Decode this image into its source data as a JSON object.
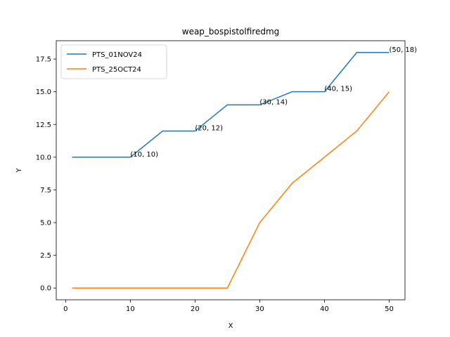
{
  "chart_data": {
    "type": "line",
    "title": "weap_bospistolfiredmg",
    "xlabel": "X",
    "ylabel": "Y",
    "xlim": [
      -1.45,
      52.45
    ],
    "ylim": [
      -0.9,
      18.9
    ],
    "xticks": [
      0,
      10,
      20,
      30,
      40,
      50
    ],
    "xtick_labels": [
      "0",
      "10",
      "20",
      "30",
      "40",
      "50"
    ],
    "yticks": [
      0,
      2.5,
      5,
      7.5,
      10,
      12.5,
      15,
      17.5
    ],
    "ytick_labels": [
      "0.0",
      "2.5",
      "5.0",
      "7.5",
      "10.0",
      "12.5",
      "15.0",
      "17.5"
    ],
    "grid": false,
    "legend_position": "top-left",
    "series": [
      {
        "name": "PTS_01NOV24",
        "color": "#1f77b4",
        "x": [
          1,
          10,
          15,
          20,
          25,
          30,
          35,
          40,
          45,
          50
        ],
        "y": [
          10,
          10,
          12,
          12,
          14,
          14,
          15,
          15,
          18,
          18
        ]
      },
      {
        "name": "PTS_25OCT24",
        "color": "#ff7f0e",
        "x": [
          1,
          10,
          15,
          20,
          25,
          30,
          35,
          40,
          45,
          50
        ],
        "y": [
          0,
          0,
          0,
          0,
          0,
          5,
          8,
          10,
          12,
          15
        ]
      }
    ],
    "annotations": [
      {
        "x": 10,
        "y": 10,
        "text": "(10, 10)"
      },
      {
        "x": 20,
        "y": 12,
        "text": "(20, 12)"
      },
      {
        "x": 30,
        "y": 14,
        "text": "(30, 14)"
      },
      {
        "x": 40,
        "y": 15,
        "text": "(40, 15)"
      },
      {
        "x": 50,
        "y": 18,
        "text": "(50, 18)"
      }
    ]
  }
}
